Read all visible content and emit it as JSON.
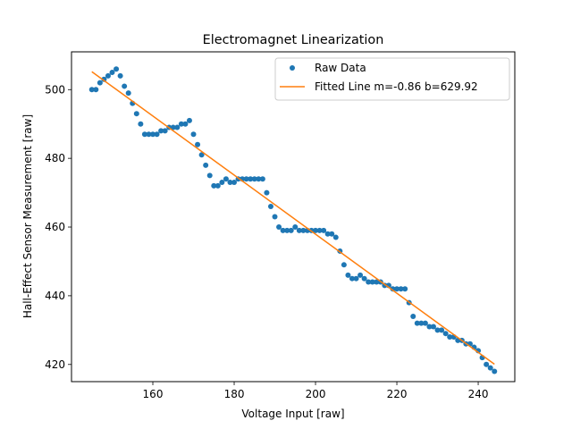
{
  "chart_data": {
    "type": "scatter",
    "title": "Electromagnet Linearization",
    "xlabel": "Voltage Input [raw]",
    "ylabel": "Hall-Effect Sensor Measurement [raw]",
    "xlim": [
      140,
      249
    ],
    "ylim": [
      415,
      511
    ],
    "xticks": [
      160,
      180,
      200,
      220,
      240
    ],
    "yticks": [
      420,
      440,
      460,
      480,
      500
    ],
    "grid": false,
    "legend_position": "top-right",
    "series": [
      {
        "name": "Raw Data",
        "kind": "scatter",
        "color": "#1f77b4",
        "points": [
          [
            145,
            500
          ],
          [
            146,
            500
          ],
          [
            147,
            502
          ],
          [
            148,
            503
          ],
          [
            149,
            504
          ],
          [
            150,
            505
          ],
          [
            151,
            506
          ],
          [
            152,
            504
          ],
          [
            153,
            501
          ],
          [
            154,
            499
          ],
          [
            155,
            496
          ],
          [
            156,
            493
          ],
          [
            157,
            490
          ],
          [
            158,
            487
          ],
          [
            159,
            487
          ],
          [
            160,
            487
          ],
          [
            161,
            487
          ],
          [
            162,
            488
          ],
          [
            163,
            488
          ],
          [
            164,
            489
          ],
          [
            165,
            489
          ],
          [
            166,
            489
          ],
          [
            167,
            490
          ],
          [
            168,
            490
          ],
          [
            169,
            491
          ],
          [
            170,
            487
          ],
          [
            171,
            484
          ],
          [
            172,
            481
          ],
          [
            173,
            478
          ],
          [
            174,
            475
          ],
          [
            175,
            472
          ],
          [
            176,
            472
          ],
          [
            177,
            473
          ],
          [
            178,
            474
          ],
          [
            179,
            473
          ],
          [
            180,
            473
          ],
          [
            181,
            474
          ],
          [
            182,
            474
          ],
          [
            183,
            474
          ],
          [
            184,
            474
          ],
          [
            185,
            474
          ],
          [
            186,
            474
          ],
          [
            187,
            474
          ],
          [
            188,
            470
          ],
          [
            189,
            466
          ],
          [
            190,
            463
          ],
          [
            191,
            460
          ],
          [
            192,
            459
          ],
          [
            193,
            459
          ],
          [
            194,
            459
          ],
          [
            195,
            460
          ],
          [
            196,
            459
          ],
          [
            197,
            459
          ],
          [
            198,
            459
          ],
          [
            199,
            459
          ],
          [
            200,
            459
          ],
          [
            201,
            459
          ],
          [
            202,
            459
          ],
          [
            203,
            458
          ],
          [
            204,
            458
          ],
          [
            205,
            457
          ],
          [
            206,
            453
          ],
          [
            207,
            449
          ],
          [
            208,
            446
          ],
          [
            209,
            445
          ],
          [
            210,
            445
          ],
          [
            211,
            446
          ],
          [
            212,
            445
          ],
          [
            213,
            444
          ],
          [
            214,
            444
          ],
          [
            215,
            444
          ],
          [
            216,
            444
          ],
          [
            217,
            443
          ],
          [
            218,
            443
          ],
          [
            219,
            442
          ],
          [
            220,
            442
          ],
          [
            221,
            442
          ],
          [
            222,
            442
          ],
          [
            223,
            438
          ],
          [
            224,
            434
          ],
          [
            225,
            432
          ],
          [
            226,
            432
          ],
          [
            227,
            432
          ],
          [
            228,
            431
          ],
          [
            229,
            431
          ],
          [
            230,
            430
          ],
          [
            231,
            430
          ],
          [
            232,
            429
          ],
          [
            233,
            428
          ],
          [
            234,
            428
          ],
          [
            235,
            427
          ],
          [
            236,
            427
          ],
          [
            237,
            426
          ],
          [
            238,
            426
          ],
          [
            239,
            425
          ],
          [
            240,
            424
          ],
          [
            241,
            422
          ],
          [
            242,
            420
          ],
          [
            243,
            419
          ],
          [
            244,
            418
          ]
        ]
      },
      {
        "name": "Fitted Line m=-0.86 b=629.92",
        "kind": "line",
        "color": "#ff7f0e",
        "slope": -0.86,
        "intercept": 629.92,
        "x_range": [
          145,
          244
        ]
      }
    ]
  }
}
